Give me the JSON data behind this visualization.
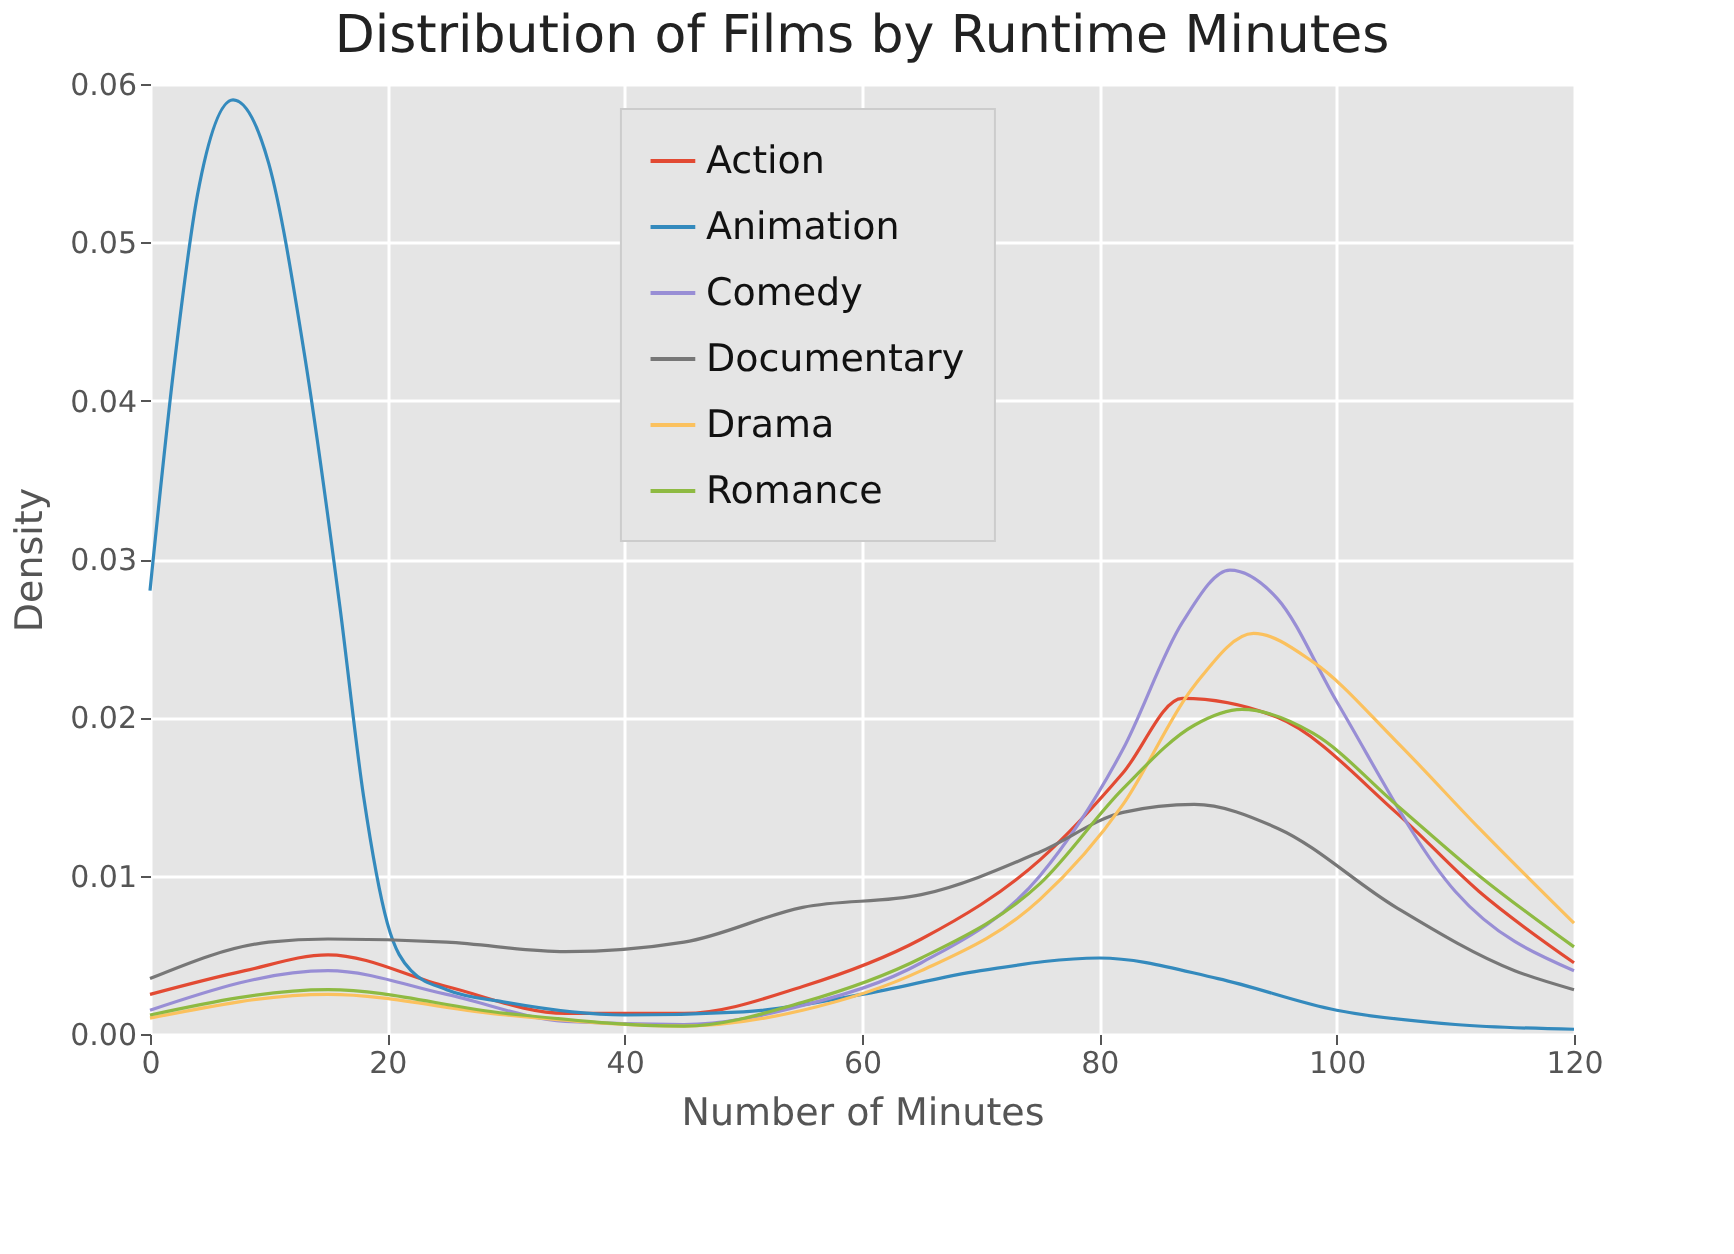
{
  "chart_data": {
    "type": "line",
    "title": "Distribution of Films by Runtime Minutes",
    "xlabel": "Number of Minutes",
    "ylabel": "Density",
    "xlim": [
      0,
      120
    ],
    "xticks": [
      0,
      20,
      40,
      60,
      80,
      100,
      120
    ],
    "ylim": [
      0,
      0.06
    ],
    "yticks": [
      {
        "value": 0,
        "label": "0.00"
      },
      {
        "value": 0.01,
        "label": "0.01"
      },
      {
        "value": 0.02,
        "label": "0.02"
      },
      {
        "value": 0.03,
        "label": "0.03"
      },
      {
        "value": 0.04,
        "label": "0.04"
      },
      {
        "value": 0.05,
        "label": "0.05"
      },
      {
        "value": 0.06,
        "label": "0.06"
      }
    ],
    "grid": true,
    "legend": "top",
    "marker": "none",
    "line_style": "solid",
    "series": [
      {
        "name": "Action",
        "color": "#e24a33",
        "x": [
          0,
          8,
          15,
          25,
          35,
          45,
          55,
          65,
          75,
          82,
          87,
          95,
          105,
          112,
          120
        ],
        "values": [
          0.0025,
          0.004,
          0.005,
          0.003,
          0.0013,
          0.0013,
          0.003,
          0.006,
          0.011,
          0.0165,
          0.0212,
          0.02,
          0.014,
          0.009,
          0.0045
        ]
      },
      {
        "name": "Animation",
        "color": "#348abd",
        "x": [
          0,
          2,
          4,
          7,
          10,
          13,
          16,
          18,
          20,
          22,
          25,
          30,
          40,
          50,
          60,
          70,
          80,
          90,
          100,
          110,
          120
        ],
        "values": [
          0.028,
          0.042,
          0.053,
          0.059,
          0.055,
          0.043,
          0.027,
          0.015,
          0.007,
          0.004,
          0.0028,
          0.002,
          0.0012,
          0.0014,
          0.0025,
          0.004,
          0.0048,
          0.0035,
          0.0015,
          0.0006,
          0.0003
        ]
      },
      {
        "name": "Comedy",
        "color": "#988ed5",
        "x": [
          0,
          15,
          25,
          35,
          45,
          55,
          65,
          75,
          82,
          87,
          91,
          95,
          100,
          110,
          120
        ],
        "values": [
          0.0015,
          0.004,
          0.0025,
          0.0008,
          0.0006,
          0.0018,
          0.0045,
          0.01,
          0.018,
          0.026,
          0.0293,
          0.0275,
          0.021,
          0.009,
          0.004
        ]
      },
      {
        "name": "Documentary",
        "color": "#777777",
        "x": [
          0,
          10,
          15,
          25,
          35,
          45,
          55,
          65,
          75,
          82,
          88,
          95,
          105,
          115,
          120
        ],
        "values": [
          0.0035,
          0.0058,
          0.006,
          0.0058,
          0.0052,
          0.0058,
          0.008,
          0.0088,
          0.0115,
          0.014,
          0.0145,
          0.013,
          0.008,
          0.004,
          0.0028
        ]
      },
      {
        "name": "Drama",
        "color": "#fbc15e",
        "x": [
          0,
          15,
          30,
          45,
          55,
          65,
          75,
          82,
          88,
          93,
          98,
          105,
          112,
          120
        ],
        "values": [
          0.001,
          0.0025,
          0.0012,
          0.0005,
          0.0015,
          0.004,
          0.0085,
          0.0145,
          0.022,
          0.0253,
          0.0235,
          0.0185,
          0.013,
          0.007
        ]
      },
      {
        "name": "Romance",
        "color": "#8eba42",
        "x": [
          0,
          15,
          30,
          45,
          55,
          65,
          75,
          82,
          88,
          92,
          98,
          105,
          112,
          120
        ],
        "values": [
          0.0012,
          0.0028,
          0.0013,
          0.0005,
          0.002,
          0.0048,
          0.0095,
          0.0155,
          0.0195,
          0.0205,
          0.019,
          0.0145,
          0.01,
          0.0055
        ]
      }
    ]
  }
}
